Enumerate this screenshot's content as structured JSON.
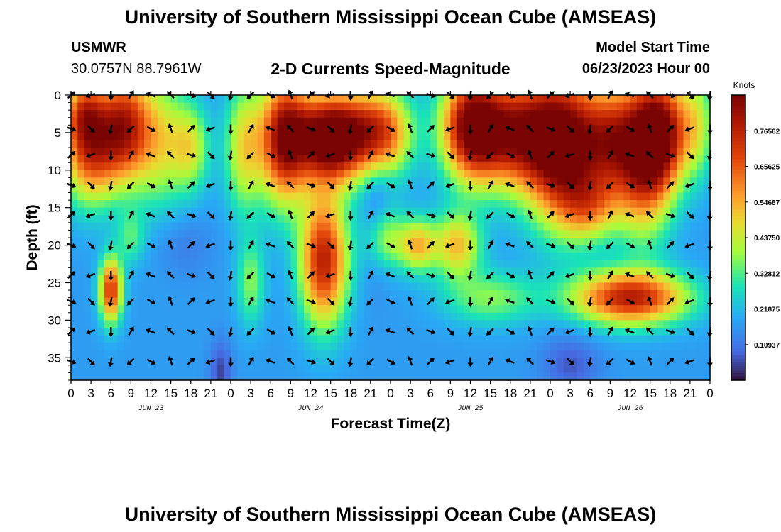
{
  "header": {
    "title": "University of Southern Mississippi Ocean Cube (AMSEAS)",
    "station": "USMWR",
    "location": "30.0757N  88.7961W",
    "subtitle": "2-D Currents Speed-Magnitude",
    "model_label": "Model Start Time",
    "model_start": "06/23/2023 Hour 00"
  },
  "footer_title": "University of Southern Mississippi Ocean Cube (AMSEAS)",
  "chart_data": {
    "type": "heatmap",
    "title": "2-D Currents Speed-Magnitude",
    "xlabel": "Forecast Time(Z)",
    "ylabel": "Depth (ft)",
    "units": "Knots",
    "x_range_hours": [
      0,
      96
    ],
    "y_range_ft": [
      0,
      38
    ],
    "x_tick_labels": [
      "0",
      "3",
      "6",
      "9",
      "12",
      "15",
      "18",
      "21",
      "0",
      "3",
      "6",
      "9",
      "12",
      "15",
      "18",
      "21",
      "0",
      "3",
      "6",
      "9",
      "12",
      "15",
      "18",
      "21",
      "0",
      "3",
      "6",
      "9",
      "12",
      "15",
      "18",
      "21",
      "0"
    ],
    "day_labels": [
      {
        "label": "JUN 23",
        "hour": 12
      },
      {
        "label": "JUN 24",
        "hour": 36
      },
      {
        "label": "JUN 25",
        "hour": 60
      },
      {
        "label": "JUN 26",
        "hour": 84
      }
    ],
    "y_ticks": [
      0,
      5,
      10,
      15,
      20,
      25,
      30,
      35
    ],
    "colorbar": {
      "min": 0.0,
      "max": 0.875,
      "tick_labels": [
        "0.76562",
        "0.65625",
        "0.54687",
        "0.43750",
        "0.32812",
        "0.21875",
        "0.10937"
      ],
      "tick_values": [
        0.765625,
        0.65625,
        0.546875,
        0.4375,
        0.328125,
        0.21875,
        0.109375
      ]
    },
    "speed_blobs": [
      {
        "t": 3,
        "d": 7,
        "st": 3,
        "sd": 5,
        "a": 0.55
      },
      {
        "t": 2,
        "d": 2,
        "st": 2,
        "sd": 3,
        "a": 0.3
      },
      {
        "t": 8,
        "d": 4,
        "st": 2.5,
        "sd": 5,
        "a": 0.5
      },
      {
        "t": 6,
        "d": 26,
        "st": 1.2,
        "sd": 3,
        "a": 0.55
      },
      {
        "t": 9,
        "d": 19,
        "st": 1.5,
        "sd": 2.5,
        "a": 0.15
      },
      {
        "t": 13,
        "d": 6,
        "st": 3,
        "sd": 6,
        "a": 0.3
      },
      {
        "t": 18,
        "d": 7,
        "st": 2,
        "sd": 4,
        "a": 0.25
      },
      {
        "t": 26,
        "d": 7,
        "st": 2,
        "sd": 6,
        "a": 0.3
      },
      {
        "t": 27,
        "d": 25,
        "st": 1.5,
        "sd": 4,
        "a": 0.2
      },
      {
        "t": 32,
        "d": 6,
        "st": 2.5,
        "sd": 6,
        "a": 0.6
      },
      {
        "t": 38,
        "d": 22,
        "st": 2.5,
        "sd": 6,
        "a": 0.6
      },
      {
        "t": 40,
        "d": 5,
        "st": 5,
        "sd": 4,
        "a": 0.6
      },
      {
        "t": 39,
        "d": 7,
        "st": 3,
        "sd": 4,
        "a": 0.3
      },
      {
        "t": 47,
        "d": 5,
        "st": 3,
        "sd": 4,
        "a": 0.35
      },
      {
        "t": 47,
        "d": 19,
        "st": 2,
        "sd": 3,
        "a": 0.25
      },
      {
        "t": 52,
        "d": 20,
        "st": 2,
        "sd": 2.5,
        "a": 0.35
      },
      {
        "t": 58,
        "d": 20,
        "st": 2.5,
        "sd": 3,
        "a": 0.35
      },
      {
        "t": 63,
        "d": 27,
        "st": 5,
        "sd": 2.5,
        "a": 0.2
      },
      {
        "t": 60,
        "d": 4,
        "st": 3,
        "sd": 5,
        "a": 0.55
      },
      {
        "t": 66,
        "d": 5,
        "st": 5,
        "sd": 5,
        "a": 0.6
      },
      {
        "t": 74,
        "d": 7,
        "st": 4,
        "sd": 7,
        "a": 0.7
      },
      {
        "t": 81,
        "d": 6,
        "st": 3,
        "sd": 5,
        "a": 0.4
      },
      {
        "t": 86,
        "d": 8,
        "st": 3,
        "sd": 7,
        "a": 0.6
      },
      {
        "t": 89,
        "d": 5,
        "st": 2.5,
        "sd": 5,
        "a": 0.5
      },
      {
        "t": 78,
        "d": 15,
        "st": 3,
        "sd": 3,
        "a": 0.25
      },
      {
        "t": 84,
        "d": 27,
        "st": 6,
        "sd": 2.5,
        "a": 0.6
      },
      {
        "t": 94,
        "d": 4,
        "st": 2,
        "sd": 5,
        "a": 0.25
      },
      {
        "t": 22.5,
        "d": 37,
        "st": 1.2,
        "sd": 3,
        "a": -0.12
      },
      {
        "t": 46,
        "d": 16,
        "st": 1.5,
        "sd": 6,
        "a": -0.1
      },
      {
        "t": 75,
        "d": 36,
        "st": 3,
        "sd": 3,
        "a": -0.1
      },
      {
        "t": 17,
        "d": 20,
        "st": 3,
        "sd": 3,
        "a": -0.05
      }
    ],
    "speed_base": 0.17,
    "arrow_grid": {
      "time_step_hours": 3,
      "depth_rows_ft": [
        0,
        4.5,
        8,
        12,
        16,
        20,
        24,
        27.5,
        31.5,
        35.5
      ],
      "pattern_angles_deg": [
        315,
        45,
        90,
        135,
        200,
        250,
        20,
        160,
        100,
        300,
        30,
        225
      ]
    }
  }
}
